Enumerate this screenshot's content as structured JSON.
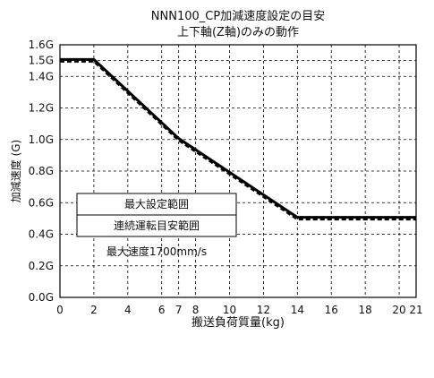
{
  "chart_data": {
    "type": "line",
    "title": "NNN100_CP加減速度設定の目安",
    "subtitle": "上下軸(Z軸)のみの動作",
    "xlabel": "搬送負荷質量(kg)",
    "ylabel": "加減速度 (G)",
    "xlim": [
      0,
      21
    ],
    "ylim": [
      0,
      1.6
    ],
    "x_ticks": [
      0,
      2,
      4,
      6,
      7,
      8,
      10,
      12,
      14,
      16,
      18,
      20,
      21
    ],
    "x_tick_labels": [
      "0",
      "2",
      "4",
      "6",
      "7",
      "8",
      "10",
      "12",
      "14",
      "16",
      "18",
      "20",
      "21"
    ],
    "y_ticks": [
      0,
      0.2,
      0.4,
      0.6,
      0.8,
      1.0,
      1.2,
      1.4,
      1.5,
      1.6
    ],
    "y_tick_labels": [
      "0.0G",
      "0.2G",
      "0.4G",
      "0.6G",
      "0.8G",
      "1.0G",
      "1.2G",
      "1.4G",
      "1.5G",
      "1.6G"
    ],
    "grid": "dashed",
    "series": [
      {
        "name": "最大設定範囲",
        "style": "solid",
        "color": "#000000",
        "x": [
          0,
          2,
          7,
          14,
          21
        ],
        "y": [
          1.5,
          1.5,
          1.0,
          0.5,
          0.5
        ]
      },
      {
        "name": "連続運転目安範囲",
        "style": "dashed",
        "color": "#000000",
        "x": [
          0,
          2,
          7,
          14,
          21
        ],
        "y": [
          1.5,
          1.5,
          1.0,
          0.5,
          0.5
        ]
      }
    ],
    "legend_location": "lower-left inside plot",
    "annotation": "最大速度1700mm/s"
  }
}
